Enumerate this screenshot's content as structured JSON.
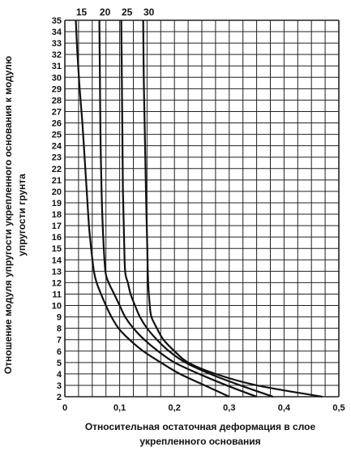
{
  "chart_data": {
    "type": "line",
    "title": "",
    "xlabel_lines": [
      "Относительная остаточная деформация в слое",
      "укрепленного основания"
    ],
    "ylabel_lines": [
      "Отношение модуля упругости укрепленного основания к модулю",
      "упругости грунта"
    ],
    "xlim": [
      0,
      0.5
    ],
    "ylim": [
      2,
      35
    ],
    "x_ticks": [
      0,
      0.1,
      0.2,
      0.3,
      0.4,
      0.5
    ],
    "x_tick_labels": [
      "0",
      "0,1",
      "0,2",
      "0,3",
      "0,4",
      "0,5"
    ],
    "x_grid_step": 0.025,
    "y_ticks": [
      2,
      3,
      4,
      5,
      6,
      7,
      8,
      9,
      10,
      11,
      12,
      13,
      14,
      15,
      16,
      17,
      18,
      19,
      20,
      21,
      22,
      23,
      24,
      25,
      26,
      27,
      28,
      29,
      30,
      31,
      32,
      33,
      34,
      35
    ],
    "grid": true,
    "series": [
      {
        "name": "15",
        "points": [
          [
            0.02,
            35
          ],
          [
            0.023,
            32
          ],
          [
            0.027,
            29
          ],
          [
            0.032,
            26
          ],
          [
            0.036,
            23
          ],
          [
            0.04,
            20
          ],
          [
            0.044,
            17
          ],
          [
            0.048,
            15
          ],
          [
            0.053,
            13
          ],
          [
            0.058,
            12
          ],
          [
            0.066,
            11
          ],
          [
            0.075,
            10
          ],
          [
            0.085,
            9
          ],
          [
            0.098,
            8
          ],
          [
            0.118,
            7
          ],
          [
            0.143,
            6
          ],
          [
            0.175,
            5
          ],
          [
            0.21,
            4
          ],
          [
            0.255,
            3
          ],
          [
            0.3,
            2
          ]
        ]
      },
      {
        "name": "20",
        "points": [
          [
            0.063,
            35
          ],
          [
            0.064,
            30
          ],
          [
            0.065,
            25
          ],
          [
            0.067,
            20
          ],
          [
            0.07,
            16
          ],
          [
            0.074,
            13
          ],
          [
            0.08,
            12
          ],
          [
            0.09,
            11
          ],
          [
            0.1,
            10
          ],
          [
            0.11,
            9
          ],
          [
            0.125,
            8
          ],
          [
            0.145,
            7
          ],
          [
            0.17,
            6
          ],
          [
            0.2,
            5
          ],
          [
            0.245,
            4
          ],
          [
            0.295,
            3
          ],
          [
            0.35,
            2
          ]
        ]
      },
      {
        "name": "25",
        "points": [
          [
            0.103,
            35
          ],
          [
            0.104,
            30
          ],
          [
            0.105,
            25
          ],
          [
            0.106,
            20
          ],
          [
            0.108,
            16
          ],
          [
            0.11,
            13
          ],
          [
            0.115,
            12
          ],
          [
            0.12,
            11
          ],
          [
            0.128,
            10
          ],
          [
            0.137,
            9
          ],
          [
            0.15,
            8
          ],
          [
            0.168,
            7
          ],
          [
            0.19,
            6
          ],
          [
            0.22,
            5
          ],
          [
            0.265,
            4
          ],
          [
            0.32,
            3
          ],
          [
            0.38,
            2
          ]
        ]
      },
      {
        "name": "30",
        "points": [
          [
            0.143,
            35
          ],
          [
            0.144,
            30
          ],
          [
            0.146,
            25
          ],
          [
            0.148,
            20
          ],
          [
            0.15,
            16
          ],
          [
            0.152,
            12
          ],
          [
            0.155,
            10
          ],
          [
            0.158,
            9
          ],
          [
            0.168,
            8
          ],
          [
            0.18,
            7
          ],
          [
            0.2,
            6
          ],
          [
            0.225,
            5
          ],
          [
            0.275,
            4
          ],
          [
            0.35,
            3
          ],
          [
            0.47,
            2
          ]
        ]
      }
    ]
  }
}
